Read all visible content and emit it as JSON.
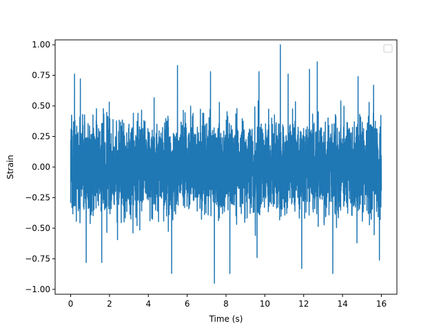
{
  "chart_data": {
    "type": "line",
    "xlabel": "Time (s)",
    "ylabel": "Strain",
    "xlim": [
      -0.8,
      16.8
    ],
    "ylim": [
      -1.04,
      1.04
    ],
    "xticks": [
      0,
      2,
      4,
      6,
      8,
      10,
      12,
      14,
      16
    ],
    "xtick_labels": [
      "0",
      "2",
      "4",
      "6",
      "8",
      "10",
      "12",
      "14",
      "16"
    ],
    "yticks": [
      -1.0,
      -0.75,
      -0.5,
      -0.25,
      0.0,
      0.25,
      0.5,
      0.75,
      1.0
    ],
    "ytick_labels": [
      "−1.00",
      "−0.75",
      "−0.50",
      "−0.25",
      "0.00",
      "0.25",
      "0.50",
      "0.75",
      "1.00"
    ],
    "grid": false,
    "legend": {
      "placement": "upper-right",
      "entries": []
    },
    "series": [
      {
        "color": "#1f77b4",
        "description": "dense noise-like strain signal, normalized to max |strain| = 1",
        "x_range": [
          0,
          16
        ],
        "typical_envelope": [
          -0.45,
          0.45
        ],
        "peaks": [
          {
            "x": 0.2,
            "y": 0.76
          },
          {
            "x": 0.5,
            "y": 0.72
          },
          {
            "x": 5.5,
            "y": 0.83
          },
          {
            "x": 7.2,
            "y": 0.78
          },
          {
            "x": 9.7,
            "y": 0.78
          },
          {
            "x": 10.8,
            "y": 1.0
          },
          {
            "x": 11.2,
            "y": 0.76
          },
          {
            "x": 12.7,
            "y": 0.86
          },
          {
            "x": 12.3,
            "y": 0.8
          },
          {
            "x": 14.8,
            "y": 0.74
          },
          {
            "x": 15.6,
            "y": 0.67
          }
        ],
        "troughs": [
          {
            "x": 0.8,
            "y": -0.78
          },
          {
            "x": 1.6,
            "y": -0.78
          },
          {
            "x": 5.2,
            "y": -0.87
          },
          {
            "x": 7.4,
            "y": -0.95
          },
          {
            "x": 8.2,
            "y": -0.87
          },
          {
            "x": 9.6,
            "y": -0.74
          },
          {
            "x": 11.9,
            "y": -0.83
          },
          {
            "x": 13.5,
            "y": -0.87
          },
          {
            "x": 15.9,
            "y": -0.76
          }
        ]
      }
    ]
  }
}
